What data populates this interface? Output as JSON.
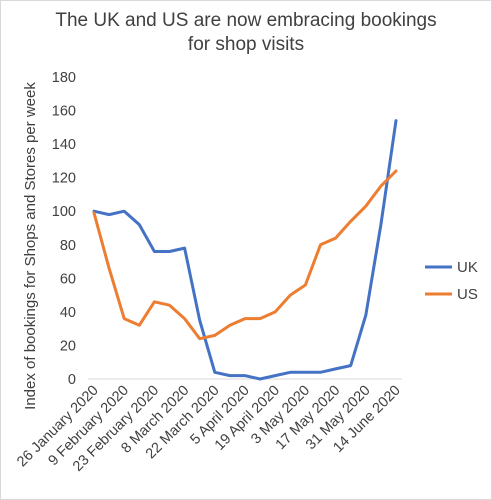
{
  "chart_data": {
    "type": "line",
    "title_line1": "The UK and US are now embracing bookings",
    "title_line2": "for shop visits",
    "ylabel": "Index of bookings for Shops and Stores per week",
    "xlabel": "",
    "ylim": [
      0,
      180
    ],
    "yticks": [
      0,
      20,
      40,
      60,
      80,
      100,
      120,
      140,
      160,
      180
    ],
    "grid": false,
    "legend_position": "right",
    "x_tick_labels": [
      "26 January 2020",
      "9 February 2020",
      "23 February 2020",
      "8 March 2020",
      "22 March 2020",
      "5 April 2020",
      "19 April 2020",
      "3 May 2020",
      "17 May 2020",
      "31 May 2020",
      "14 June 2020"
    ],
    "x_tick_positions": [
      0,
      2,
      4,
      6,
      8,
      10,
      12,
      14,
      16,
      18,
      20
    ],
    "x_count": 21,
    "series": [
      {
        "name": "UK",
        "color": "#4472c4",
        "values": [
          100,
          98,
          100,
          92,
          76,
          76,
          78,
          35,
          4,
          2,
          2,
          0,
          2,
          4,
          4,
          4,
          6,
          8,
          38,
          92,
          154
        ]
      },
      {
        "name": "US",
        "color": "#ed7d31",
        "values": [
          99,
          66,
          36,
          32,
          46,
          44,
          36,
          24,
          26,
          32,
          36,
          36,
          40,
          50,
          56,
          80,
          84,
          94,
          103,
          115,
          124
        ]
      }
    ]
  }
}
